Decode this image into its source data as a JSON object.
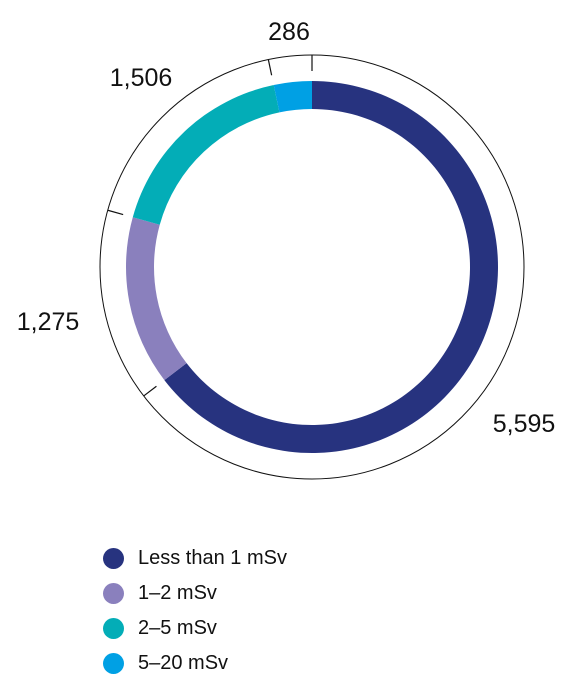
{
  "chart_data": {
    "type": "pie",
    "variant": "donut",
    "title": "",
    "categories": [
      "Less than 1 mSv",
      "1–2 mSv",
      "2–5 mSv",
      "5–20 mSv"
    ],
    "values": [
      5595,
      1275,
      1506,
      286
    ],
    "value_labels": [
      "5,595",
      "1,275",
      "1,506",
      "286"
    ],
    "colors": [
      "#27337f",
      "#8a80bd",
      "#03adb7",
      "#00a0e4"
    ],
    "start": "12 o'clock",
    "direction": "clockwise",
    "legend": "bottom"
  }
}
